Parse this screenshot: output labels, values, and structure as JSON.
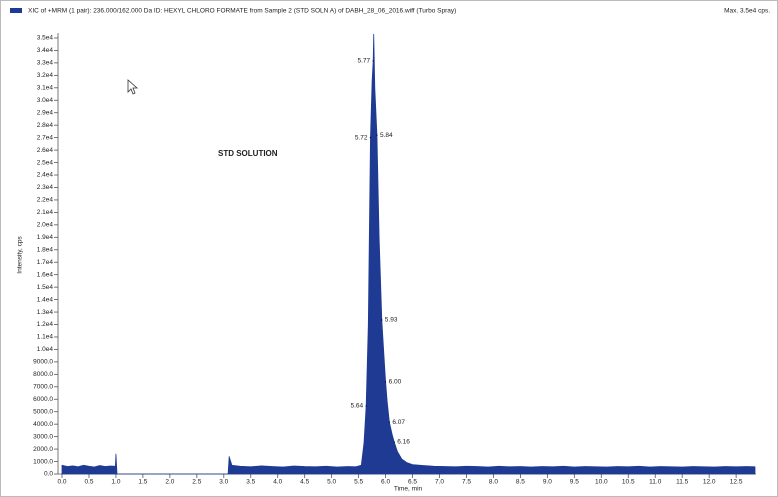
{
  "chart_data": {
    "type": "area",
    "title": "XIC of +MRM (1 pair): 236.000/162.000 Da ID: HEXYL CHLORO FORMATE from Sample 2 (STD SOLN A) of DABH_28_06_2016.wiff (Turbo Spray)",
    "max_label": "Max. 3.5e4 cps.",
    "annotation": "STD SOLUTION",
    "x_label": "Time, min",
    "y_label": "Intensity, cps",
    "color": "#1f3a93",
    "xlim": [
      0,
      12.85
    ],
    "ylim": [
      0,
      35400
    ],
    "xticks": [
      {
        "value": 0,
        "label": "0.0"
      },
      0.5,
      {
        "value": 1,
        "label": "1.0"
      },
      1.5,
      {
        "value": 2,
        "label": "2.0"
      },
      2.5,
      {
        "value": 3,
        "label": "3.0"
      },
      3.5,
      {
        "value": 4,
        "label": "4.0"
      },
      4.5,
      {
        "value": 5,
        "label": "5.0"
      },
      5.5,
      {
        "value": 6,
        "label": "6.0"
      },
      6.5,
      {
        "value": 7,
        "label": "7.0"
      },
      7.5,
      {
        "value": 8,
        "label": "8.0"
      },
      8.5,
      {
        "value": 9,
        "label": "9.0"
      },
      9.5,
      {
        "value": 10,
        "label": "10.0"
      },
      10.5,
      {
        "value": 11,
        "label": "11.0"
      },
      11.5,
      {
        "value": 12,
        "label": "12.0"
      },
      12.5
    ],
    "yticks": [
      {
        "value": 0,
        "label": "0.0"
      },
      {
        "value": 1000,
        "label": "1000.0"
      },
      {
        "value": 2000,
        "label": "2000.0"
      },
      {
        "value": 3000,
        "label": "3000.0"
      },
      {
        "value": 4000,
        "label": "4000.0"
      },
      {
        "value": 5000,
        "label": "5000.0"
      },
      {
        "value": 6000,
        "label": "6000.0"
      },
      {
        "value": 7000,
        "label": "7000.0"
      },
      {
        "value": 8000,
        "label": "8000.0"
      },
      {
        "value": 9000,
        "label": "9000.0"
      },
      {
        "value": 10000,
        "label": "1.0e4"
      },
      {
        "value": 11000,
        "label": "1.1e4"
      },
      {
        "value": 12000,
        "label": "1.2e4"
      },
      {
        "value": 13000,
        "label": "1.3e4"
      },
      {
        "value": 14000,
        "label": "1.4e4"
      },
      {
        "value": 15000,
        "label": "1.5e4"
      },
      {
        "value": 16000,
        "label": "1.6e4"
      },
      {
        "value": 17000,
        "label": "1.7e4"
      },
      {
        "value": 18000,
        "label": "1.8e4"
      },
      {
        "value": 19000,
        "label": "1.9e4"
      },
      {
        "value": 20000,
        "label": "2.0e4"
      },
      {
        "value": 21000,
        "label": "2.1e4"
      },
      {
        "value": 22000,
        "label": "2.2e4"
      },
      {
        "value": 23000,
        "label": "2.3e4"
      },
      {
        "value": 24000,
        "label": "2.4e4"
      },
      {
        "value": 25000,
        "label": "2.5e4"
      },
      {
        "value": 26000,
        "label": "2.6e4"
      },
      {
        "value": 27000,
        "label": "2.7e4"
      },
      {
        "value": 28000,
        "label": "2.8e4"
      },
      {
        "value": 29000,
        "label": "2.9e4"
      },
      {
        "value": 30000,
        "label": "3.0e4"
      },
      {
        "value": 31000,
        "label": "3.1e4"
      },
      {
        "value": 32000,
        "label": "3.2e4"
      },
      {
        "value": 33000,
        "label": "3.3e4"
      },
      {
        "value": 34000,
        "label": "3.4e4"
      },
      {
        "value": 35000,
        "label": "3.5e4"
      }
    ],
    "x": [
      0,
      0.1,
      0.2,
      0.3,
      0.4,
      0.5,
      0.6,
      0.7,
      0.8,
      0.9,
      0.99,
      1.0,
      1.02,
      3.08,
      3.1,
      3.15,
      3.3,
      3.5,
      3.7,
      3.9,
      4.1,
      4.3,
      4.5,
      4.7,
      4.9,
      5.1,
      5.3,
      5.45,
      5.55,
      5.6,
      5.64,
      5.68,
      5.72,
      5.75,
      5.77,
      5.78,
      5.8,
      5.84,
      5.88,
      5.93,
      5.97,
      6.0,
      6.03,
      6.07,
      6.12,
      6.16,
      6.22,
      6.3,
      6.4,
      6.5,
      6.7,
      6.9,
      7.1,
      7.3,
      7.5,
      7.7,
      7.9,
      8.1,
      8.3,
      8.5,
      8.7,
      8.9,
      9.1,
      9.3,
      9.5,
      9.7,
      9.9,
      10.1,
      10.3,
      10.5,
      10.7,
      10.9,
      11.1,
      11.3,
      11.5,
      11.7,
      11.9,
      12.1,
      12.3,
      12.5,
      12.7,
      12.85
    ],
    "values": [
      700,
      600,
      650,
      580,
      700,
      620,
      560,
      680,
      600,
      640,
      620,
      1600,
      0,
      0,
      1400,
      700,
      620,
      580,
      650,
      600,
      560,
      640,
      600,
      580,
      620,
      560,
      600,
      580,
      700,
      2500,
      5460,
      12000,
      27000,
      31500,
      33150,
      35300,
      31000,
      27200,
      19000,
      12360,
      9500,
      7400,
      5800,
      4170,
      3200,
      2570,
      1800,
      1200,
      900,
      750,
      680,
      620,
      600,
      580,
      620,
      600,
      560,
      620,
      580,
      600,
      560,
      600,
      580,
      620,
      560,
      600,
      580,
      560,
      600,
      580,
      620,
      560,
      600,
      580,
      560,
      600,
      580,
      560,
      600,
      580,
      600,
      580
    ],
    "peak_labels": [
      {
        "text": "5.77",
        "x": 5.77,
        "y": 33150
      },
      {
        "text": "5.72",
        "x": 5.72,
        "y": 27000
      },
      {
        "text": "5.84",
        "x": 5.84,
        "y": 27200
      },
      {
        "text": "5.93",
        "x": 5.93,
        "y": 12360
      },
      {
        "text": "6.00",
        "x": 6.0,
        "y": 7400
      },
      {
        "text": "5.64",
        "x": 5.64,
        "y": 5460
      },
      {
        "text": "6.07",
        "x": 6.07,
        "y": 4170
      },
      {
        "text": "6.16",
        "x": 6.16,
        "y": 2570
      }
    ]
  }
}
